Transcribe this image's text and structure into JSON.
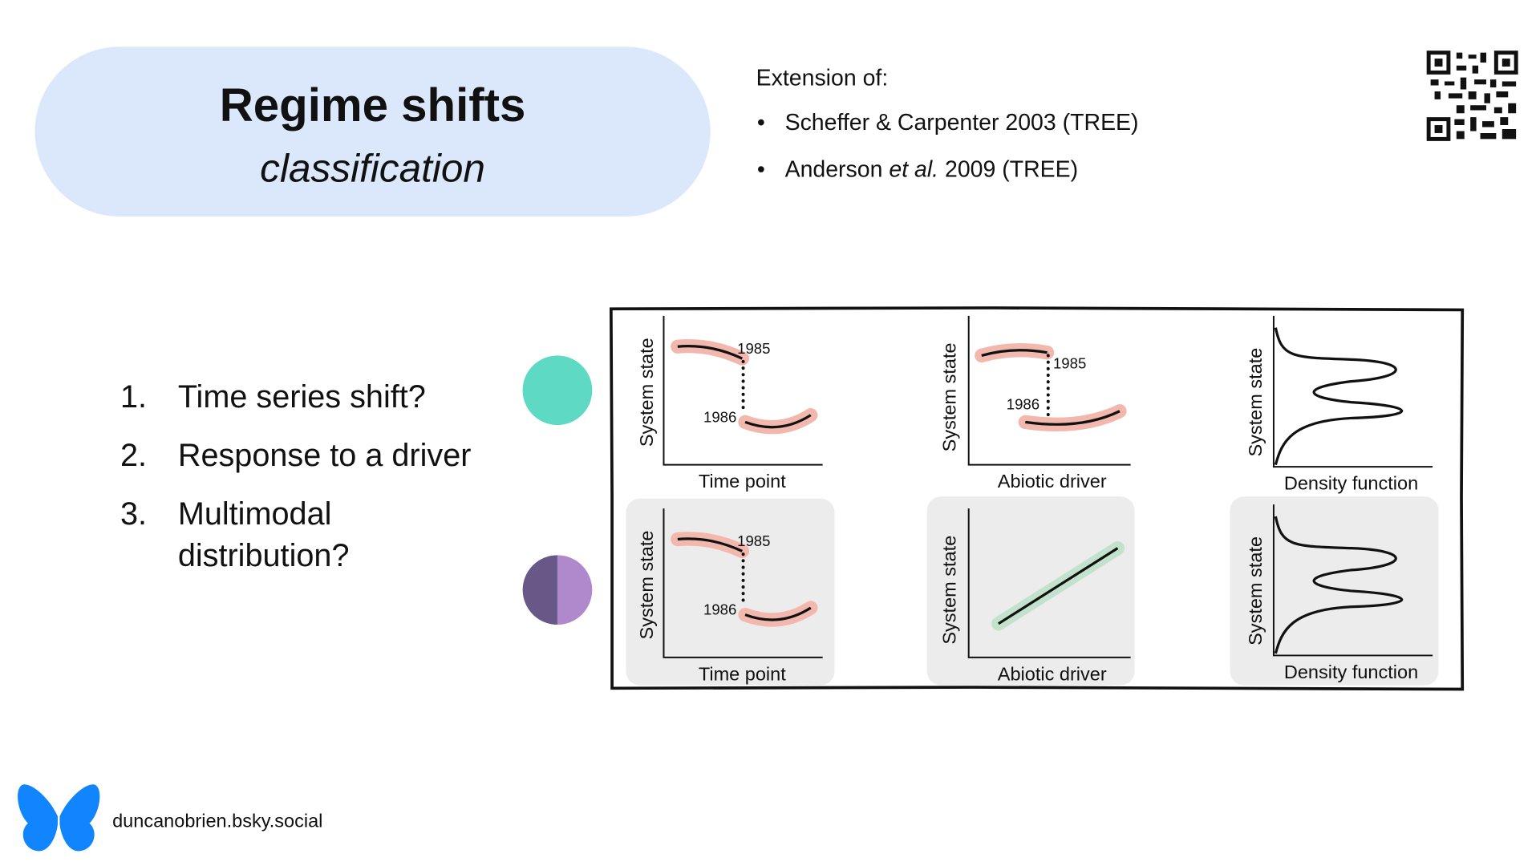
{
  "header": {
    "title": "Regime shifts",
    "subtitle": "classification"
  },
  "extension": {
    "heading": "Extension of:",
    "references": [
      {
        "text": "Scheffer & Carpenter 2003 (TREE)"
      },
      {
        "before": "Anderson ",
        "italic": "et al.",
        "after": " 2009 (TREE)"
      }
    ]
  },
  "list": [
    {
      "number": "1.",
      "lines": [
        "Time series shift?"
      ]
    },
    {
      "number": "2.",
      "lines": [
        "Response to a driver"
      ]
    },
    {
      "number": "3.",
      "lines": [
        "Multimodal",
        "distribution?"
      ]
    }
  ],
  "panels": [
    {
      "y_label": "System state",
      "x_label": "Time point",
      "annotations": [
        "1985",
        "1986"
      ]
    },
    {
      "y_label": "System state",
      "x_label": "Abiotic driver",
      "annotations": [
        "1985",
        "1986"
      ]
    },
    {
      "y_label": "System state",
      "x_label": "Density function"
    },
    {
      "y_label": "System state",
      "x_label": "Time point",
      "annotations": [
        "1985",
        "1986"
      ]
    },
    {
      "y_label": "System state",
      "x_label": "Abiotic driver"
    },
    {
      "y_label": "System state",
      "x_label": "Density function"
    }
  ],
  "footer": {
    "handle": "duncanobrien.bsky.social"
  }
}
